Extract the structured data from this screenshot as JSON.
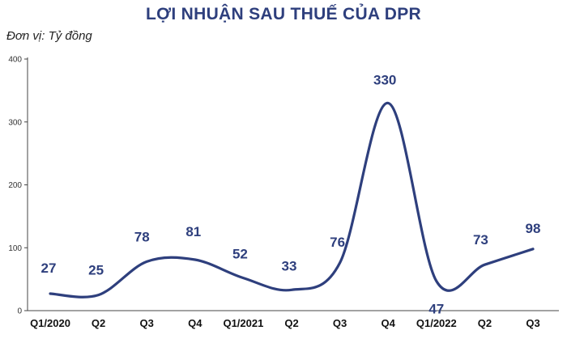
{
  "chart_data": {
    "type": "line",
    "title": "LỢI NHUẬN SAU THUẾ CỦA DPR",
    "subtitle": "Đơn vị: Tỷ đồng",
    "categories": [
      "Q1/2020",
      "Q2",
      "Q3",
      "Q4",
      "Q1/2021",
      "Q2",
      "Q3",
      "Q4",
      "Q1/2022",
      "Q2",
      "Q3"
    ],
    "series": [
      {
        "values": [
          27,
          25,
          78,
          81,
          52,
          33,
          76,
          330,
          47,
          73,
          98
        ]
      }
    ],
    "data_labels": [
      "27",
      "25",
      "78",
      "81",
      "52",
      "33",
      "76",
      "330",
      "47",
      "73",
      "98"
    ],
    "y_ticks": [
      "0",
      "100",
      "200",
      "300",
      "400"
    ],
    "ylim": [
      0,
      400
    ],
    "grid": false,
    "smooth": true,
    "line_color": "#2e3f7d"
  }
}
